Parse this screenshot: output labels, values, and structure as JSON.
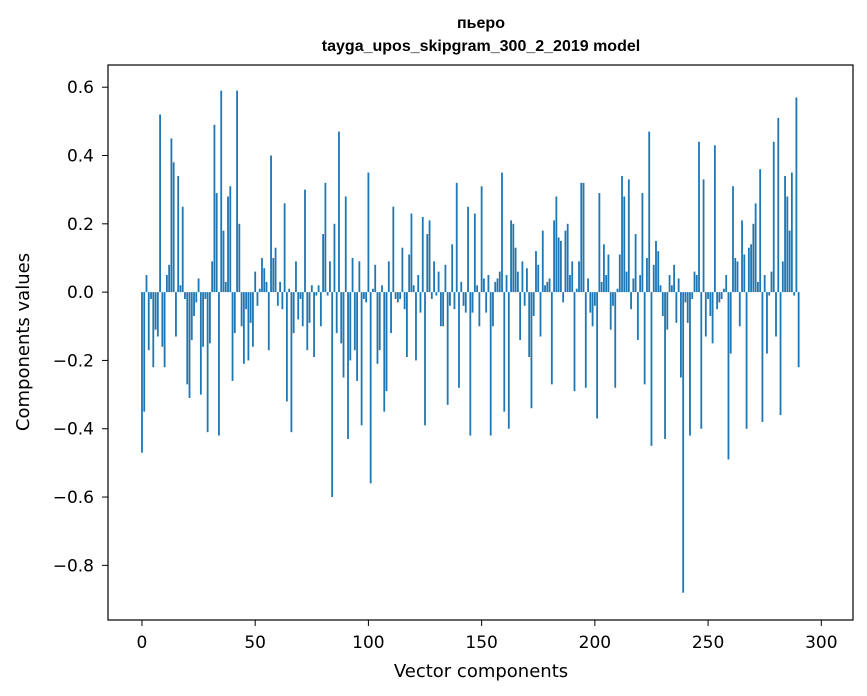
{
  "chart_data": {
    "type": "bar",
    "title": "пьеро",
    "subtitle": "tayga_upos_skipgram_300_2_2019 model",
    "xlabel": "Vector components",
    "ylabel": "Components values",
    "xlim": [
      -15,
      314
    ],
    "ylim": [
      -0.96,
      0.665
    ],
    "x_ticks": [
      0,
      50,
      100,
      150,
      200,
      250,
      300
    ],
    "x_tick_labels": [
      "0",
      "50",
      "100",
      "150",
      "200",
      "250",
      "300"
    ],
    "y_ticks": [
      -0.8,
      -0.6,
      -0.4,
      -0.2,
      0.0,
      0.2,
      0.4,
      0.6
    ],
    "y_tick_labels": [
      "−0.8",
      "−0.6",
      "−0.4",
      "−0.2",
      "0.0",
      "0.2",
      "0.4",
      "0.6"
    ],
    "bar_color": "#1f77b4",
    "grid": false,
    "values": [
      -0.47,
      -0.35,
      0.05,
      -0.17,
      -0.02,
      -0.22,
      -0.11,
      -0.13,
      0.52,
      -0.16,
      -0.22,
      0.05,
      0.08,
      0.45,
      0.38,
      -0.13,
      0.34,
      0.02,
      0.25,
      -0.02,
      -0.27,
      -0.31,
      -0.14,
      -0.07,
      -0.03,
      0.04,
      -0.3,
      -0.16,
      -0.02,
      -0.41,
      -0.15,
      0.09,
      0.49,
      0.29,
      -0.42,
      0.59,
      0.18,
      0.03,
      0.28,
      0.31,
      -0.26,
      -0.12,
      0.59,
      0.2,
      -0.1,
      -0.21,
      -0.05,
      -0.2,
      -0.09,
      -0.16,
      0.06,
      -0.04,
      0.01,
      0.1,
      0.07,
      0.03,
      -0.17,
      0.4,
      0.1,
      0.13,
      -0.04,
      0.03,
      -0.05,
      0.26,
      -0.32,
      0.01,
      -0.41,
      -0.12,
      0.09,
      -0.08,
      -0.02,
      -0.1,
      0.3,
      -0.17,
      -0.09,
      0.02,
      -0.19,
      -0.01,
      0.02,
      -0.1,
      0.17,
      0.32,
      -0.01,
      0.09,
      -0.6,
      0.2,
      -0.12,
      0.47,
      -0.15,
      -0.25,
      0.28,
      -0.43,
      -0.2,
      0.1,
      -0.17,
      -0.26,
      0.09,
      -0.39,
      -0.02,
      -0.03,
      0.35,
      -0.56,
      0.01,
      0.08,
      -0.21,
      -0.17,
      0.02,
      -0.35,
      -0.29,
      0.09,
      -0.12,
      0.25,
      -0.02,
      -0.03,
      -0.02,
      0.13,
      -0.05,
      -0.19,
      0.11,
      0.23,
      0.02,
      -0.2,
      0.05,
      -0.06,
      0.22,
      -0.39,
      0.17,
      0.21,
      -0.02,
      0.09,
      -0.01,
      0.06,
      -0.1,
      -0.1,
      0.08,
      -0.33,
      -0.04,
      0.14,
      -0.05,
      0.32,
      -0.28,
      0.03,
      -0.04,
      -0.06,
      0.25,
      -0.42,
      -0.06,
      0.23,
      0.02,
      -0.1,
      0.31,
      0.04,
      -0.06,
      0.05,
      -0.42,
      -0.1,
      0.03,
      0.04,
      0.06,
      0.35,
      -0.35,
      0.05,
      -0.4,
      0.21,
      0.2,
      0.13,
      0.06,
      -0.14,
      0.09,
      -0.04,
      0.07,
      -0.19,
      -0.34,
      -0.07,
      0.12,
      0.08,
      -0.13,
      0.18,
      0.02,
      0.03,
      0.04,
      -0.27,
      0.21,
      0.28,
      0.16,
      0.15,
      -0.03,
      0.18,
      0.2,
      0.05,
      0.09,
      -0.29,
      0.01,
      0.09,
      0.32,
      0.32,
      -0.28,
      0.04,
      -0.06,
      -0.1,
      -0.04,
      -0.37,
      0.29,
      0.03,
      0.14,
      0.05,
      0.11,
      -0.11,
      -0.04,
      -0.28,
      0.01,
      0.11,
      0.34,
      0.28,
      0.06,
      0.33,
      -0.05,
      0.04,
      0.17,
      -0.14,
      0.05,
      0.29,
      -0.27,
      0.1,
      0.47,
      -0.45,
      0.08,
      0.15,
      0.12,
      0.02,
      -0.07,
      -0.43,
      -0.11,
      0.05,
      0.02,
      0.08,
      -0.09,
      0.04,
      -0.25,
      -0.88,
      -0.03,
      -0.09,
      -0.42,
      -0.02,
      0.06,
      0.05,
      0.44,
      -0.4,
      0.33,
      -0.13,
      -0.02,
      -0.07,
      -0.15,
      0.43,
      -0.05,
      -0.03,
      -0.02,
      0.01,
      0.05,
      -0.49,
      -0.18,
      0.31,
      0.1,
      0.09,
      -0.1,
      0.21,
      0.11,
      -0.4,
      0.13,
      0.14,
      0.2,
      0.26,
      0.03,
      0.36,
      -0.38,
      0.05,
      -0.18,
      -0.01,
      0.06,
      0.44,
      -0.13,
      0.51,
      -0.36,
      0.09,
      0.34,
      0.28,
      0.18,
      0.35,
      -0.01,
      0.57,
      -0.22
    ]
  }
}
